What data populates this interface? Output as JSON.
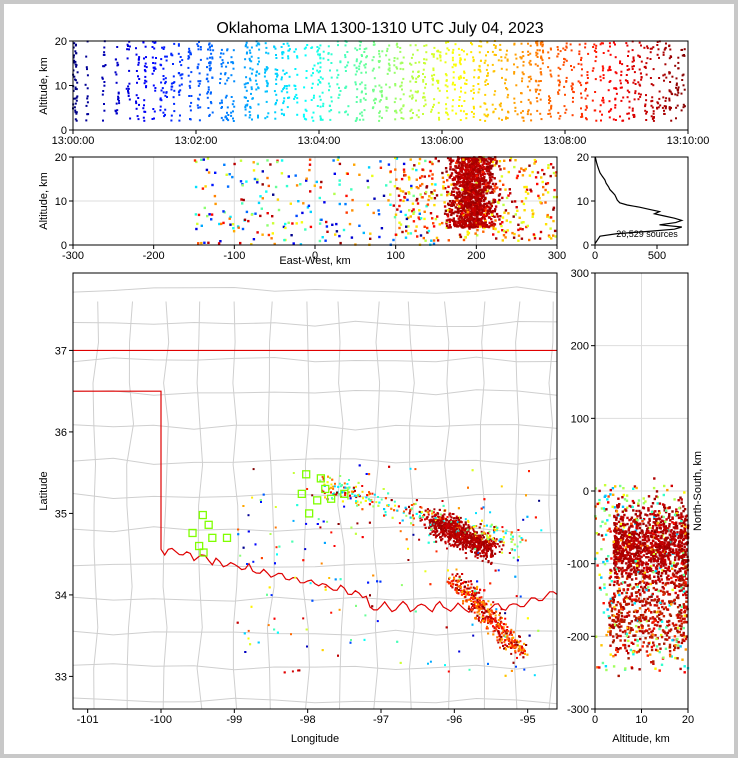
{
  "title": "Oklahoma LMA 1300-1310 UTC July 04, 2023",
  "chart_data": [
    {
      "panel": "altitude-time",
      "type": "scatter",
      "ylabel": "Altitude, km",
      "xlim": [
        "13:00:00",
        "13:10:00"
      ],
      "ylim": [
        0,
        20
      ],
      "xticks": [
        "13:00:00",
        "13:02:00",
        "13:04:00",
        "13:06:00",
        "13:08:00",
        "13:10:00"
      ],
      "yticks": [
        "0",
        "10",
        "20"
      ],
      "color_encoding": "time (blue to red)"
    },
    {
      "panel": "east-west-altitude",
      "type": "scatter",
      "xlabel": "East-West, km",
      "ylabel": "Altitude, km",
      "xlim": [
        -300,
        300
      ],
      "ylim": [
        0,
        20
      ],
      "xticks": [
        "-300",
        "-200",
        "-100",
        "0",
        "100",
        "200",
        "300"
      ],
      "yticks": [
        "0",
        "10",
        "20"
      ],
      "grid": true
    },
    {
      "panel": "altitude-histogram",
      "type": "line",
      "xlim": [
        0,
        750
      ],
      "ylim": [
        0,
        20
      ],
      "xticks": [
        "0",
        "500"
      ],
      "yticks": [
        "0",
        "10",
        "20"
      ],
      "annotation": "26,529 sources",
      "profile": [
        [
          0,
          0.3
        ],
        [
          40,
          2
        ],
        [
          180,
          2.6
        ],
        [
          430,
          3.1
        ],
        [
          640,
          3.6
        ],
        [
          700,
          4.1
        ],
        [
          520,
          4.6
        ],
        [
          650,
          5.1
        ],
        [
          700,
          5.6
        ],
        [
          640,
          6.1
        ],
        [
          560,
          6.6
        ],
        [
          480,
          7.1
        ],
        [
          520,
          7.6
        ],
        [
          440,
          8.1
        ],
        [
          360,
          8.6
        ],
        [
          260,
          9.1
        ],
        [
          200,
          9.6
        ],
        [
          180,
          10.2
        ],
        [
          170,
          10.8
        ],
        [
          160,
          11.4
        ],
        [
          140,
          12
        ],
        [
          120,
          12.6
        ],
        [
          110,
          13.2
        ],
        [
          90,
          14
        ],
        [
          80,
          14.8
        ],
        [
          60,
          15.6
        ],
        [
          40,
          16.4
        ],
        [
          30,
          17.2
        ],
        [
          20,
          18
        ],
        [
          12,
          18.8
        ],
        [
          6,
          19.6
        ],
        [
          2,
          20
        ]
      ]
    },
    {
      "panel": "plan-view-map",
      "type": "scatter",
      "xlabel": "Longitude",
      "ylabel": "Latitude",
      "xlim": [
        -101.2,
        -94.6
      ],
      "ylim": [
        32.6,
        37.95
      ],
      "xticks": [
        "-101",
        "-100",
        "-99",
        "-98",
        "-97",
        "-96",
        "-95"
      ],
      "yticks": [
        "33",
        "34",
        "35",
        "36",
        "37"
      ],
      "stations": [
        [
          -98.02,
          35.48
        ],
        [
          -97.82,
          35.43
        ],
        [
          -98.08,
          35.24
        ],
        [
          -97.76,
          35.3
        ],
        [
          -97.68,
          35.18
        ],
        [
          -97.5,
          35.24
        ],
        [
          -97.98,
          35.0
        ],
        [
          -97.87,
          35.16
        ],
        [
          -99.43,
          34.98
        ],
        [
          -99.35,
          34.86
        ],
        [
          -99.3,
          34.7
        ],
        [
          -99.1,
          34.7
        ],
        [
          -99.57,
          34.76
        ],
        [
          -99.48,
          34.6
        ],
        [
          -99.42,
          34.52
        ]
      ]
    },
    {
      "panel": "altitude-north-south",
      "type": "scatter",
      "xlabel": "Altitude, km",
      "ylabel": "North-South, km",
      "xlim": [
        0,
        20
      ],
      "ylim": [
        -300,
        300
      ],
      "xticks": [
        "0",
        "10",
        "20"
      ],
      "yticks": [
        "-300",
        "-200",
        "-100",
        "0",
        "100",
        "200",
        "300"
      ],
      "grid": true
    }
  ]
}
